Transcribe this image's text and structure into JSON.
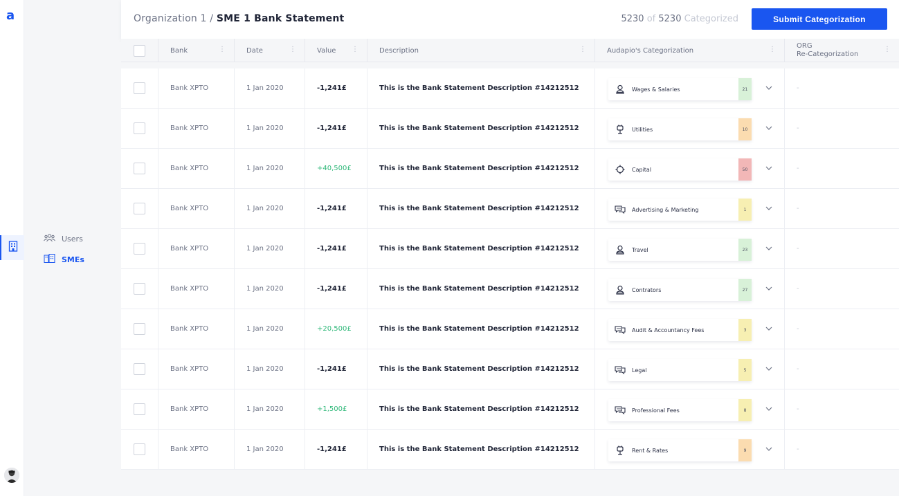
{
  "app": {
    "logo": "a"
  },
  "nav": {
    "items": [
      {
        "label": "Users",
        "icon": "users-icon"
      },
      {
        "label": "SMEs",
        "icon": "buildings-icon",
        "active": true
      }
    ]
  },
  "header": {
    "breadcrumb_org": "Organization 1 /",
    "breadcrumb_page": "SME 1 Bank Statement",
    "count_done": "5230",
    "count_of": "of",
    "count_total": "5230",
    "count_label": "Categorized",
    "submit_label": "Submit Categorization"
  },
  "columns": {
    "bank": "Bank",
    "date": "Date",
    "value": "Value",
    "description": "Description",
    "audapio": "Audapio's Categorization",
    "org_line1": "ORG",
    "org_line2": "Re-Categorization"
  },
  "colors": {
    "accent": "#1a56f0",
    "positive": "#2fb879",
    "green": "#d8f1d8",
    "orange": "#fbdcb0",
    "red": "#f2b7b7",
    "yellow": "#f7efb2"
  },
  "rows": [
    {
      "bank": "Bank XPTO",
      "date": "1 Jan 2020",
      "value": "-1,241£",
      "positive": false,
      "description": "This is the Bank Statement Description #14212512",
      "category": "Wages & Salaries",
      "icon": "person-icon",
      "score": "21",
      "score_color": "#d8f1d8",
      "org": "-"
    },
    {
      "bank": "Bank XPTO",
      "date": "1 Jan 2020",
      "value": "-1,241£",
      "positive": false,
      "description": "This is the Bank Statement Description #14212512",
      "category": "Utilities",
      "icon": "plug-icon",
      "score": "10",
      "score_color": "#fbdcb0",
      "org": "-"
    },
    {
      "bank": "Bank XPTO",
      "date": "1 Jan 2020",
      "value": "+40,500£",
      "positive": true,
      "description": "This is the Bank Statement Description #14212512",
      "category": "Capital",
      "icon": "target-icon",
      "score": "50",
      "score_color": "#f2b7b7",
      "org": "-"
    },
    {
      "bank": "Bank XPTO",
      "date": "1 Jan 2020",
      "value": "-1,241£",
      "positive": false,
      "description": "This is the Bank Statement Description #14212512",
      "category": "Advertising & Marketing",
      "icon": "chat-icon",
      "score": "1",
      "score_color": "#f7efb2",
      "org": "-"
    },
    {
      "bank": "Bank XPTO",
      "date": "1 Jan 2020",
      "value": "-1,241£",
      "positive": false,
      "description": "This is the Bank Statement Description #14212512",
      "category": "Travel",
      "icon": "person-icon",
      "score": "23",
      "score_color": "#d8f1d8",
      "org": "-"
    },
    {
      "bank": "Bank XPTO",
      "date": "1 Jan 2020",
      "value": "-1,241£",
      "positive": false,
      "description": "This is the Bank Statement Description #14212512",
      "category": "Contrators",
      "icon": "person-icon",
      "score": "27",
      "score_color": "#d8f1d8",
      "org": "-"
    },
    {
      "bank": "Bank XPTO",
      "date": "1 Jan 2020",
      "value": "+20,500£",
      "positive": true,
      "description": "This is the Bank Statement Description #14212512",
      "category": "Audit & Accountancy Fees",
      "icon": "chat-icon",
      "score": "3",
      "score_color": "#f7efb2",
      "org": "-"
    },
    {
      "bank": "Bank XPTO",
      "date": "1 Jan 2020",
      "value": "-1,241£",
      "positive": false,
      "description": "This is the Bank Statement Description #14212512",
      "category": "Legal",
      "icon": "chat-icon",
      "score": "5",
      "score_color": "#f7efb2",
      "org": "-"
    },
    {
      "bank": "Bank XPTO",
      "date": "1 Jan 2020",
      "value": "+1,500£",
      "positive": true,
      "description": "This is the Bank Statement Description #14212512",
      "category": "Professional Fees",
      "icon": "chat-icon",
      "score": "8",
      "score_color": "#f7efb2",
      "org": "-"
    },
    {
      "bank": "Bank XPTO",
      "date": "1 Jan 2020",
      "value": "-1,241£",
      "positive": false,
      "description": "This is the Bank Statement Description #14212512",
      "category": "Rent & Rates",
      "icon": "plug-icon",
      "score": "9",
      "score_color": "#fbdcb0",
      "org": "-"
    }
  ]
}
